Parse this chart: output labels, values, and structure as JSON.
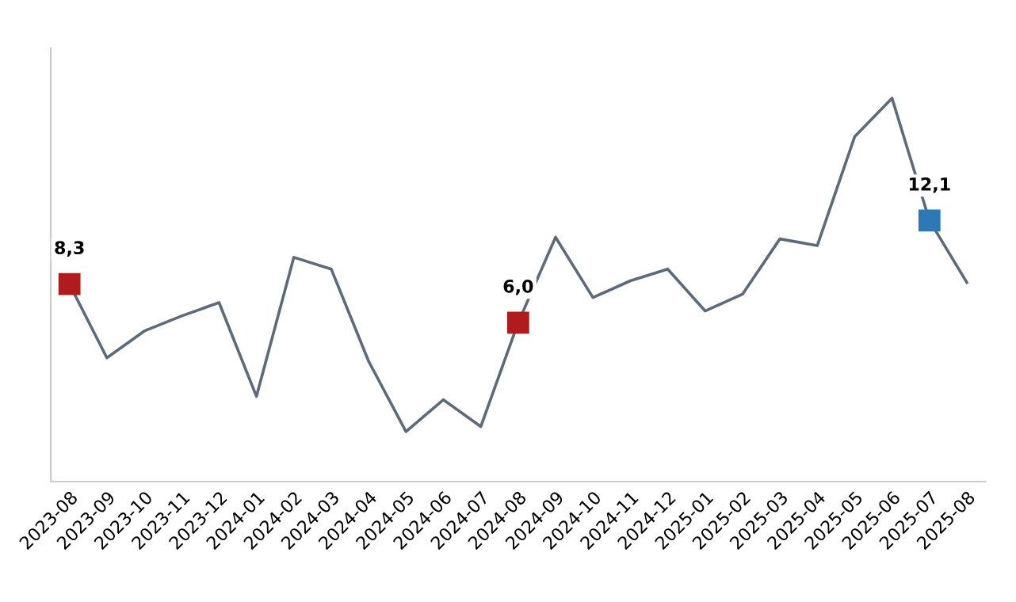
{
  "chart_data": {
    "type": "line",
    "categories": [
      "2023-08",
      "2023-09",
      "2023-10",
      "2023-11",
      "2023-12",
      "2024-01",
      "2024-02",
      "2024-03",
      "2024-04",
      "2024-05",
      "2024-06",
      "2024-07",
      "2024-08",
      "2024-09",
      "2024-10",
      "2024-11",
      "2024-12",
      "2025-01",
      "2025-02",
      "2025-03",
      "2025-04",
      "2025-05",
      "2025-06",
      "2025-07",
      "2025-08"
    ],
    "series": [
      {
        "color": "#5b6b7b",
        "values": [
          8.3,
          3.9,
          5.5,
          6.4,
          7.2,
          1.6,
          9.9,
          9.2,
          3.7,
          -0.5,
          1.4,
          -0.2,
          6.0,
          11.1,
          7.5,
          8.5,
          9.2,
          6.7,
          7.7,
          11.0,
          10.6,
          17.1,
          19.4,
          12.1,
          8.4
        ],
        "colors": [
          "#b01c1c",
          null,
          null,
          null,
          null,
          null,
          null,
          null,
          null,
          null,
          null,
          null,
          "#b01c1c",
          null,
          null,
          null,
          null,
          null,
          null,
          null,
          null,
          null,
          null,
          "#2e78b5",
          null
        ],
        "value_labels": [
          "8,3",
          null,
          null,
          null,
          null,
          null,
          null,
          null,
          null,
          null,
          null,
          null,
          "6,0",
          null,
          null,
          null,
          null,
          null,
          null,
          null,
          null,
          null,
          null,
          "12,1",
          null
        ]
      }
    ],
    "grid": false,
    "legend": false,
    "tick_labels": "x"
  }
}
